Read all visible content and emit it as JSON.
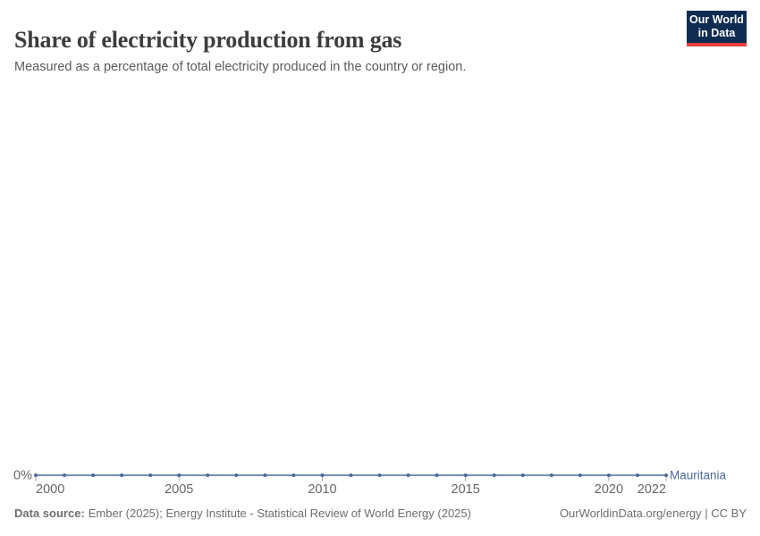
{
  "header": {
    "title": "Share of electricity production from gas",
    "subtitle": "Measured as a percentage of total electricity produced in the country or region.",
    "logo": {
      "line1": "Our World",
      "line2": "in Data",
      "bg_color": "#0f2d52",
      "accent_color": "#e63e3e"
    }
  },
  "chart_data": {
    "type": "line",
    "title": "Share of electricity production from gas",
    "subtitle": "Measured as a percentage of total electricity produced in the country or region.",
    "x": [
      2000,
      2001,
      2002,
      2003,
      2004,
      2005,
      2006,
      2007,
      2008,
      2009,
      2010,
      2011,
      2012,
      2013,
      2014,
      2015,
      2016,
      2017,
      2018,
      2019,
      2020,
      2021,
      2022
    ],
    "series": [
      {
        "name": "Mauritania",
        "color": "#4c6a9c",
        "values": [
          0,
          0,
          0,
          0,
          0,
          0,
          0,
          0,
          0,
          0,
          0,
          0,
          0,
          0,
          0,
          0,
          0,
          0,
          0,
          0,
          0,
          0,
          0
        ]
      }
    ],
    "x_ticks": [
      2000,
      2005,
      2010,
      2015,
      2020,
      2022
    ],
    "y_ticks": [
      "0%"
    ],
    "xlim": [
      2000,
      2022
    ],
    "ylim": [
      0,
      100
    ],
    "xlabel": "",
    "ylabel": "",
    "grid": false,
    "legend_position": "end-of-line-label",
    "axis_label_color": "#666666",
    "tick_mark_color": "#a3a3a3"
  },
  "footer": {
    "source_label": "Data source:",
    "source_text": "Ember (2025); Energy Institute - Statistical Review of World Energy (2025)",
    "rights": "OurWorldinData.org/energy | CC BY"
  }
}
